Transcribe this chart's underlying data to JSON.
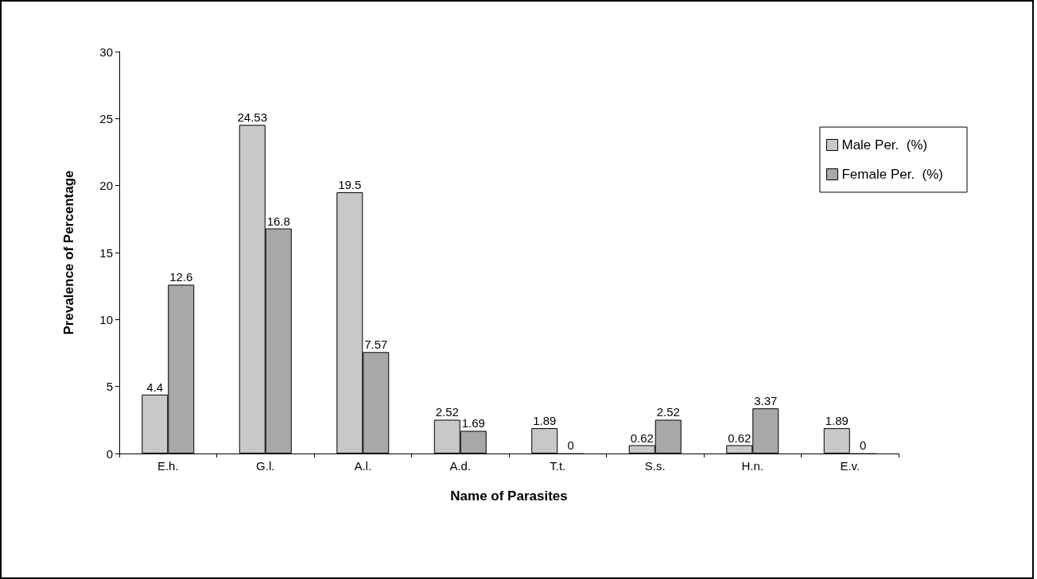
{
  "chart_data": {
    "type": "bar",
    "xlabel": "Name of Parasites",
    "ylabel": "Prevalence of Percentage",
    "categories": [
      "E.h.",
      "G.l.",
      "A.l.",
      "A.d.",
      "T.t.",
      "S.s.",
      "H.n.",
      "E.v."
    ],
    "series": [
      {
        "name": "Male Per.  (%)",
        "color": "#c8c8c8",
        "values": [
          4.4,
          24.53,
          19.5,
          2.52,
          1.89,
          0.62,
          0.62,
          1.89
        ]
      },
      {
        "name": "Female Per.  (%)",
        "color": "#a8a8a8",
        "values": [
          12.6,
          16.8,
          7.57,
          1.69,
          0,
          2.52,
          3.37,
          0
        ]
      }
    ],
    "ylim": [
      0,
      30
    ],
    "yticks": [
      0,
      5,
      10,
      15,
      20,
      25,
      30
    ],
    "grid": false,
    "legend": "top right",
    "data_labels": true
  }
}
